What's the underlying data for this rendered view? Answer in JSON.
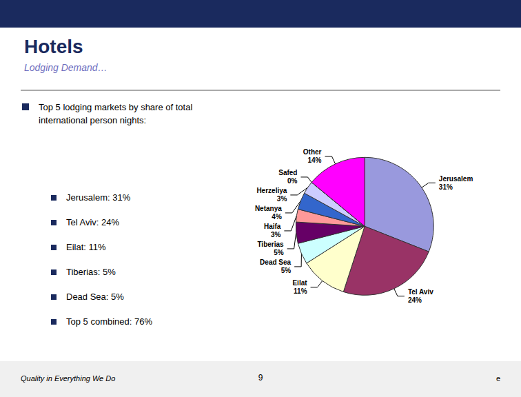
{
  "chart_data": {
    "type": "pie",
    "title": "Hotels",
    "subtitle": "Lodging Demand…",
    "categories": [
      "Jerusalem",
      "Tel Aviv",
      "Eilat",
      "Dead Sea",
      "Tiberias",
      "Haifa",
      "Netanya",
      "Herzeliya",
      "Safed",
      "Other"
    ],
    "values": [
      31,
      24,
      11,
      5,
      5,
      3,
      4,
      3,
      0,
      14
    ],
    "value_labels": [
      "31%",
      "24%",
      "11%",
      "5%",
      "5%",
      "3%",
      "4%",
      "3%",
      "0%",
      "14%"
    ],
    "colors": [
      "#9999dd",
      "#993366",
      "#ffffcc",
      "#ccffff",
      "#660066",
      "#ff9999",
      "#3366cc",
      "#ccccff",
      "#ccddee",
      "#ff00ff"
    ],
    "data_labels": true,
    "legend": "none",
    "annotations": [
      "Top 5 lodging markets by share of total international person nights:",
      "Jerusalem: 31%",
      "Tel Aviv: 24%",
      "Eilat: 11%",
      "Tiberias: 5%",
      "Dead Sea: 5%",
      "Top 5 combined: 76%",
      "Quality in Everything We Do",
      "9",
      "e"
    ]
  }
}
